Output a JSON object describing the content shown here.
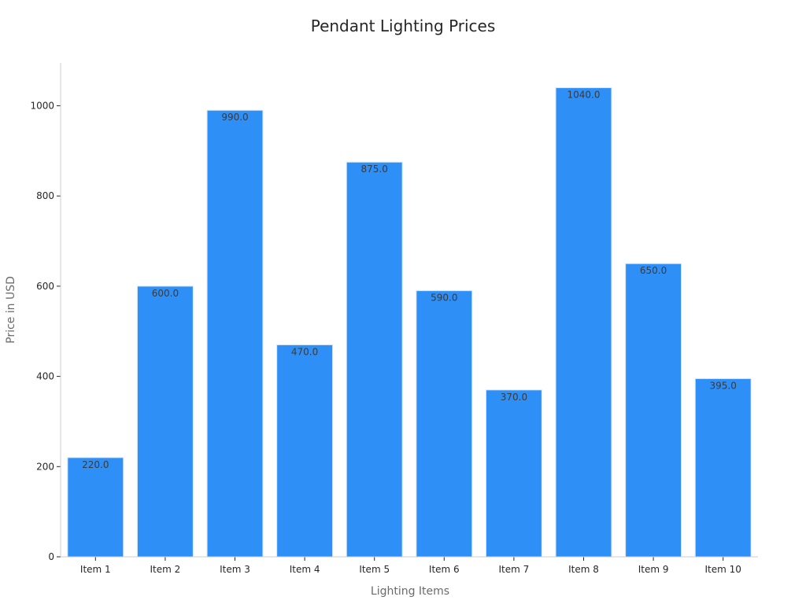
{
  "chart_data": {
    "type": "bar",
    "title": "Pendant Lighting Prices",
    "xlabel": "Lighting Items",
    "ylabel": "Price in USD",
    "categories": [
      "Item 1",
      "Item 2",
      "Item 3",
      "Item 4",
      "Item 5",
      "Item 6",
      "Item 7",
      "Item 8",
      "Item 9",
      "Item 10"
    ],
    "values": [
      220,
      600,
      990,
      470,
      875,
      590,
      370,
      1040,
      650,
      395
    ],
    "value_labels": [
      "220.0",
      "600.0",
      "990.0",
      "470.0",
      "875.0",
      "590.0",
      "370.0",
      "1040.0",
      "650.0",
      "395.0"
    ],
    "ylim": [
      0,
      1095
    ],
    "yticks": [
      0,
      200,
      400,
      600,
      800,
      1000
    ],
    "ytick_labels": [
      "0",
      "200",
      "400",
      "600",
      "800",
      "1000"
    ],
    "grid": false,
    "legend": "none",
    "colors": {
      "bar": "#2e90f7",
      "bar_edge": "#d6e6f5",
      "axis": "#cccccc",
      "tick": "#262626"
    }
  }
}
